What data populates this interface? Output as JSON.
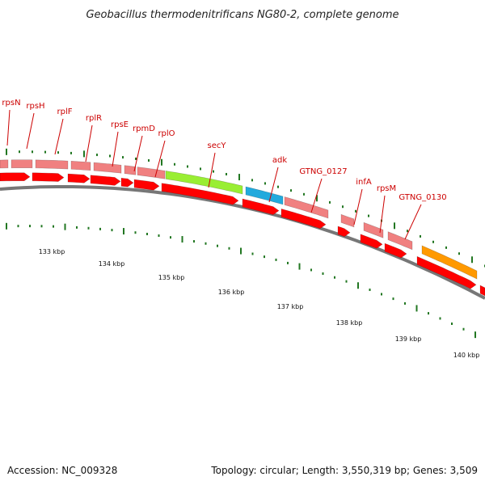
{
  "title": "Geobacillus thermodenitrificans NG80-2, complete genome",
  "accession": "Accession: NC_009328",
  "summary": "Topology: circular; Length: 3,550,319 bp; Genes: 3,509",
  "colors": {
    "forward_strand": "#ff0000",
    "gene_pink": "#f08080",
    "secY": "#99ee33",
    "adk": "#22aadd",
    "orange_gene": "#ff9900",
    "backbone": "#777777",
    "tick": "#227722",
    "label": "#cc0000"
  },
  "gene_labels": [
    "rpsN",
    "rpsH",
    "rplF",
    "rplR",
    "rpsE",
    "rpmD",
    "rplO",
    "secY",
    "adk",
    "GTNG_0127",
    "infA",
    "rpsM",
    "GTNG_0130"
  ],
  "scale_labels": [
    "133 kbp",
    "134 kbp",
    "135 kbp",
    "136 kbp",
    "137 kbp",
    "138 kbp",
    "139 kbp",
    "140 kbp"
  ]
}
